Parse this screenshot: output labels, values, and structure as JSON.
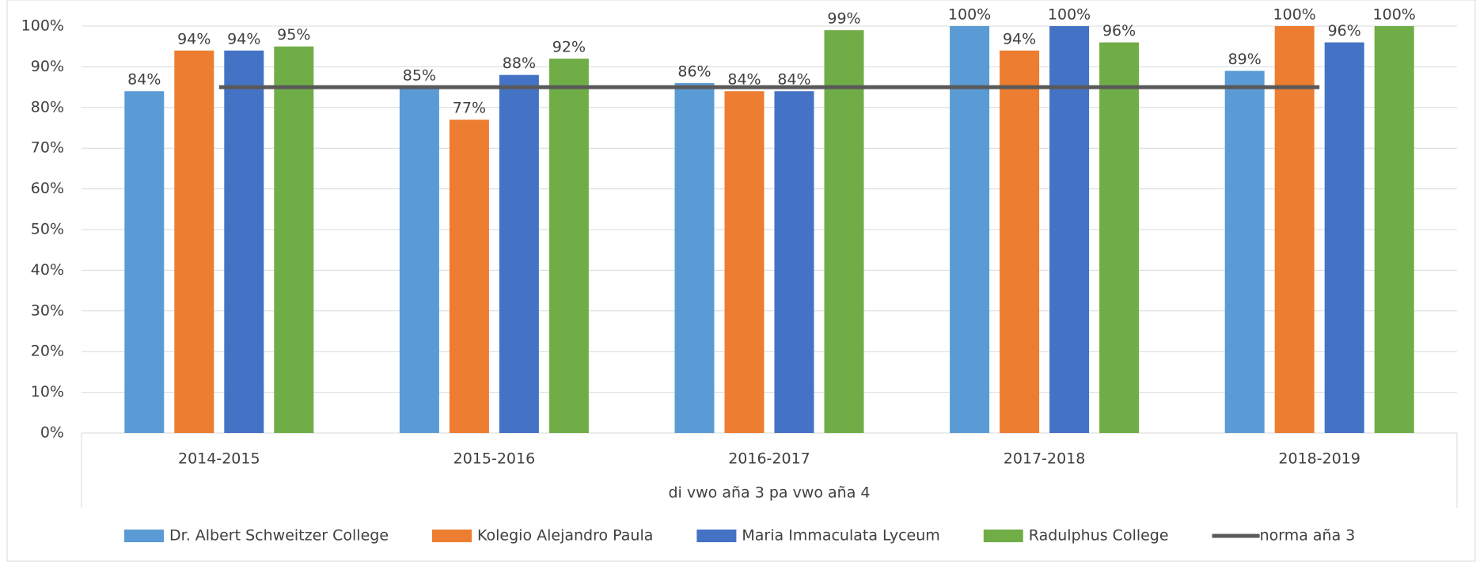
{
  "chart_data": {
    "type": "bar",
    "x_label": "di vwo aña 3 pa vwo aña 4",
    "categories": [
      "2014-2015",
      "2015-2016",
      "2016-2017",
      "2017-2018",
      "2018-2019"
    ],
    "series": [
      {
        "name": "Dr. Albert Schweitzer College",
        "color": "#5b9bd5",
        "values": [
          84,
          85,
          86,
          100,
          89
        ],
        "value_labels": [
          "84%",
          "85%",
          "86%",
          "100%",
          "89%"
        ]
      },
      {
        "name": "Kolegio Alejandro Paula",
        "color": "#ed7d31",
        "values": [
          94,
          77,
          84,
          94,
          100
        ],
        "value_labels": [
          "94%",
          "77%",
          "84%",
          "94%",
          "100%"
        ]
      },
      {
        "name": "Maria Immaculata Lyceum",
        "color": "#4472c4",
        "values": [
          94,
          88,
          84,
          100,
          96
        ],
        "value_labels": [
          "94%",
          "88%",
          "84%",
          "100%",
          "96%"
        ]
      },
      {
        "name": "Radulphus College",
        "color": "#70ad47",
        "values": [
          95,
          92,
          99,
          96,
          100
        ],
        "value_labels": [
          "95%",
          "92%",
          "99%",
          "96%",
          "100%"
        ]
      },
      {
        "name": "norma aña 3",
        "type": "line",
        "color": "#595959",
        "values": [
          85,
          85,
          85,
          85,
          85
        ]
      }
    ],
    "ylim": [
      0,
      100
    ],
    "yticks": [
      {
        "value": 0,
        "label": "0%"
      },
      {
        "value": 10,
        "label": "10%"
      },
      {
        "value": 20,
        "label": "20%"
      },
      {
        "value": 30,
        "label": "30%"
      },
      {
        "value": 40,
        "label": "40%"
      },
      {
        "value": 50,
        "label": "50%"
      },
      {
        "value": 60,
        "label": "60%"
      },
      {
        "value": 70,
        "label": "70%"
      },
      {
        "value": 80,
        "label": "80%"
      },
      {
        "value": 90,
        "label": "90%"
      },
      {
        "value": 100,
        "label": "100%"
      }
    ],
    "grid": true,
    "legend": "bottom"
  }
}
